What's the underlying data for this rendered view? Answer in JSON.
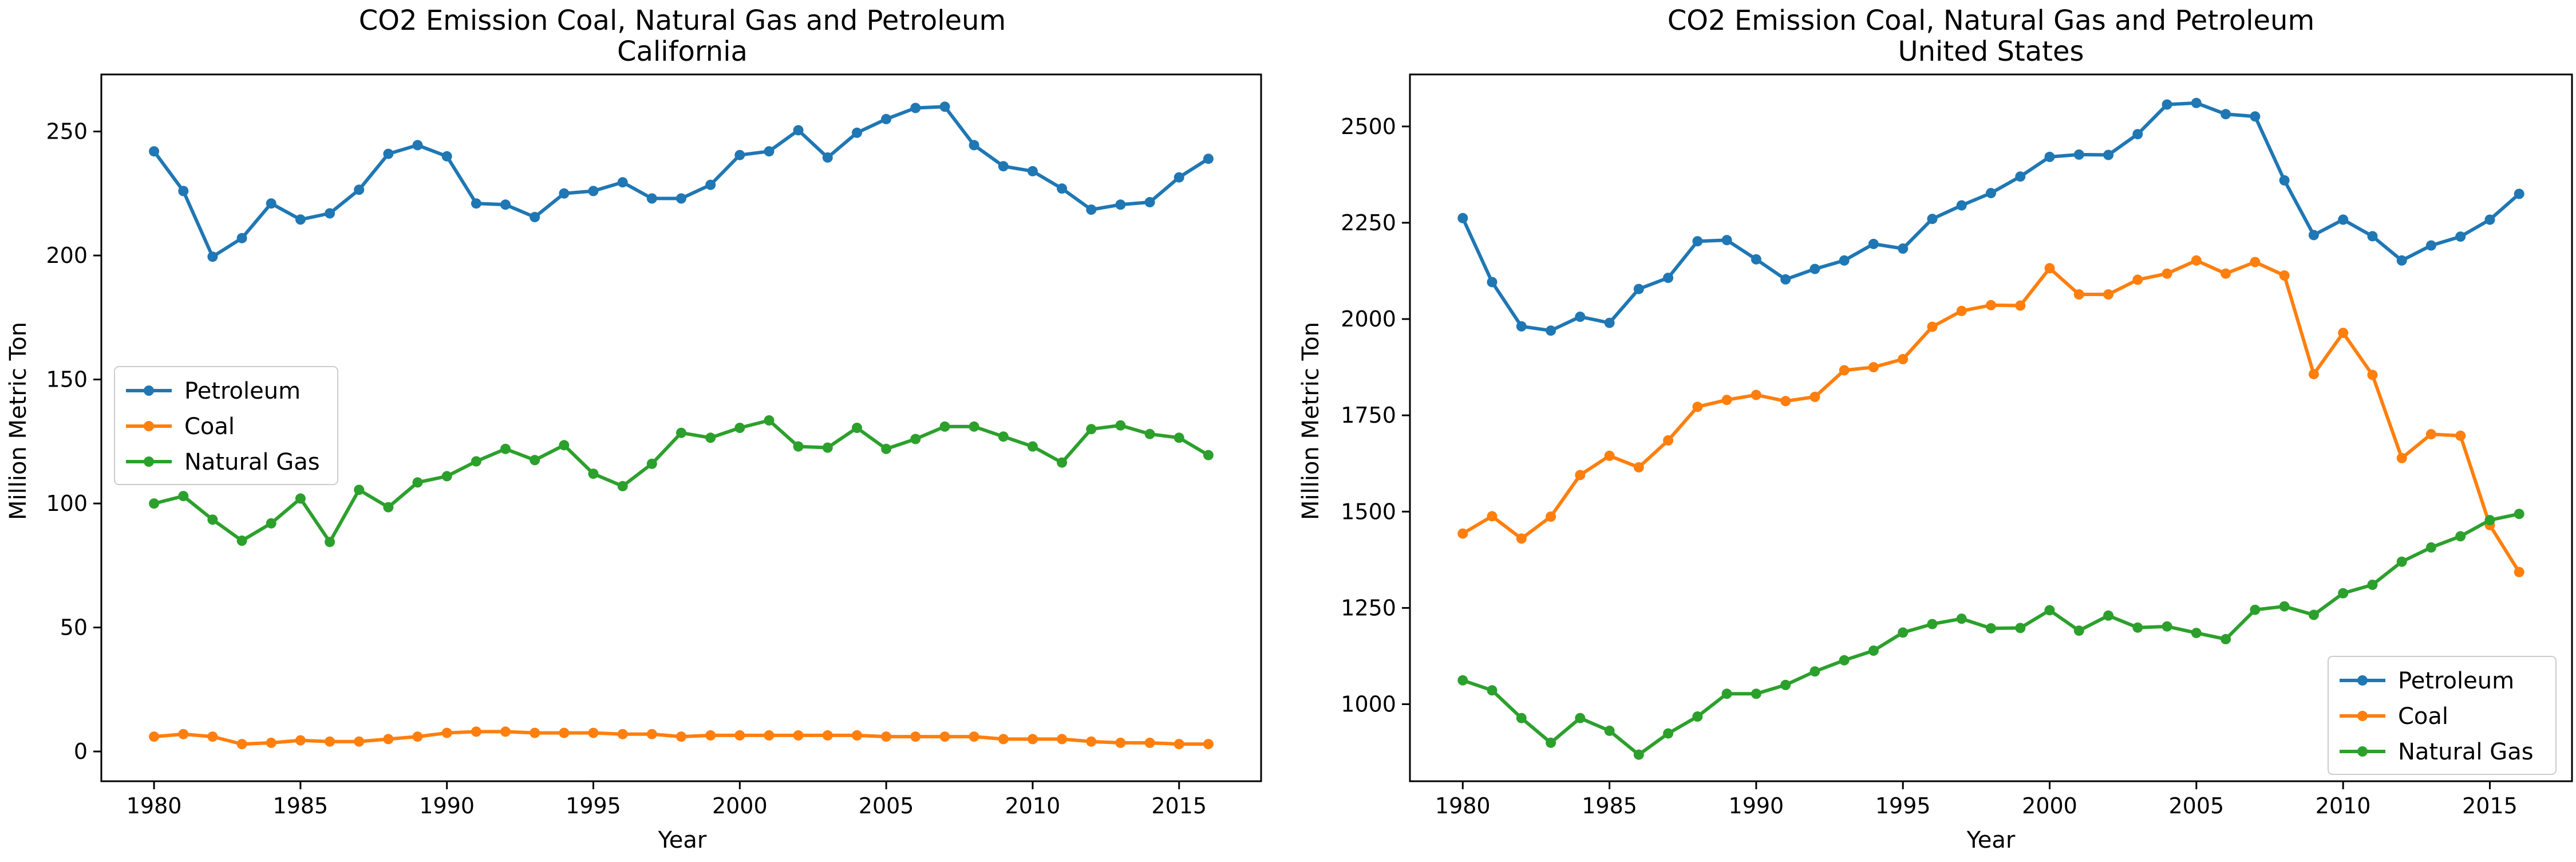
{
  "chart_data": [
    {
      "type": "line",
      "title": "CO2 Emission Coal, Natural Gas and Petroleum",
      "subtitle": "California",
      "xlabel": "Year",
      "ylabel": "Million Metric Ton",
      "xlim": [
        1978.2,
        2017.8
      ],
      "ylim": [
        -12,
        273
      ],
      "xticks": [
        1980,
        1985,
        1990,
        1995,
        2000,
        2005,
        2010,
        2015
      ],
      "yticks": [
        0,
        50,
        100,
        150,
        200,
        250
      ],
      "grid": false,
      "legend": "center-left",
      "x": [
        1980,
        1981,
        1982,
        1983,
        1984,
        1985,
        1986,
        1987,
        1988,
        1989,
        1990,
        1991,
        1992,
        1993,
        1994,
        1995,
        1996,
        1997,
        1998,
        1999,
        2000,
        2001,
        2002,
        2003,
        2004,
        2005,
        2006,
        2007,
        2008,
        2009,
        2010,
        2011,
        2012,
        2013,
        2014,
        2015,
        2016
      ],
      "series": [
        {
          "name": "Petroleum",
          "color": "#1f77b4",
          "values": [
            242,
            226,
            199.5,
            207,
            221,
            214.5,
            217,
            226.5,
            241,
            244.5,
            240,
            221,
            220.5,
            215.5,
            225,
            226,
            229.5,
            223,
            223,
            228.5,
            240.5,
            242,
            250.5,
            239.5,
            249.5,
            255,
            259.5,
            260,
            244.5,
            236,
            234,
            227,
            218.5,
            220.5,
            221.5,
            231.5,
            239
          ]
        },
        {
          "name": "Coal",
          "color": "#ff7f0e",
          "values": [
            6,
            7,
            6,
            3,
            3.5,
            4.5,
            4,
            4,
            5,
            6,
            7.5,
            8,
            8,
            7.5,
            7.5,
            7.5,
            7,
            7,
            6,
            6.5,
            6.5,
            6.5,
            6.5,
            6.5,
            6.5,
            6,
            6,
            6,
            6,
            5,
            5,
            5,
            4,
            3.5,
            3.5,
            3,
            3
          ]
        },
        {
          "name": "Natural Gas",
          "color": "#2ca02c",
          "values": [
            100,
            103,
            93.5,
            85,
            92,
            102,
            84.5,
            105.5,
            98.5,
            108.5,
            111,
            117,
            122,
            117.5,
            123.5,
            112,
            107,
            116,
            128.5,
            126.5,
            130.5,
            133.5,
            123,
            122.5,
            130.5,
            122,
            126,
            131,
            131,
            127,
            123,
            116.5,
            130,
            131.5,
            128,
            126.5,
            119.5
          ]
        }
      ]
    },
    {
      "type": "line",
      "title": "CO2 Emission Coal, Natural Gas and Petroleum",
      "subtitle": "United States",
      "xlabel": "Year",
      "ylabel": "Million Metric Ton",
      "xlim": [
        1978.2,
        2017.8
      ],
      "ylim": [
        800,
        2635
      ],
      "xticks": [
        1980,
        1985,
        1990,
        1995,
        2000,
        2005,
        2010,
        2015
      ],
      "yticks": [
        1000,
        1250,
        1500,
        1750,
        2000,
        2250,
        2500
      ],
      "grid": false,
      "legend": "bottom-right",
      "x": [
        1980,
        1981,
        1982,
        1983,
        1984,
        1985,
        1986,
        1987,
        1988,
        1989,
        1990,
        1991,
        1992,
        1993,
        1994,
        1995,
        1996,
        1997,
        1998,
        1999,
        2000,
        2001,
        2002,
        2003,
        2004,
        2005,
        2006,
        2007,
        2008,
        2009,
        2010,
        2011,
        2012,
        2013,
        2014,
        2015,
        2016
      ],
      "series": [
        {
          "name": "Petroleum",
          "color": "#1f77b4",
          "values": [
            2262,
            2096,
            1981,
            1970,
            2006,
            1990,
            2078,
            2107,
            2202,
            2205,
            2155,
            2103,
            2130,
            2152,
            2195,
            2183,
            2260,
            2295,
            2327,
            2370,
            2421,
            2427,
            2426,
            2480,
            2557,
            2561,
            2532,
            2526,
            2360,
            2218,
            2258,
            2215,
            2152,
            2191,
            2214,
            2258,
            2325
          ]
        },
        {
          "name": "Coal",
          "color": "#ff7f0e",
          "values": [
            1443,
            1488,
            1430,
            1487,
            1595,
            1645,
            1615,
            1685,
            1772,
            1790,
            1803,
            1787,
            1798,
            1867,
            1875,
            1896,
            1980,
            2021,
            2036,
            2035,
            2132,
            2064,
            2064,
            2102,
            2118,
            2152,
            2118,
            2148,
            2113,
            1857,
            1964,
            1855,
            1639,
            1701,
            1697,
            1465,
            1343
          ]
        },
        {
          "name": "Natural Gas",
          "color": "#2ca02c",
          "values": [
            1062,
            1036,
            964,
            900,
            964,
            931,
            869,
            924,
            968,
            1027,
            1027,
            1050,
            1085,
            1114,
            1139,
            1186,
            1208,
            1222,
            1197,
            1198,
            1244,
            1191,
            1230,
            1199,
            1202,
            1185,
            1169,
            1245,
            1254,
            1232,
            1288,
            1310,
            1370,
            1407,
            1436,
            1478,
            1494
          ]
        }
      ]
    }
  ]
}
